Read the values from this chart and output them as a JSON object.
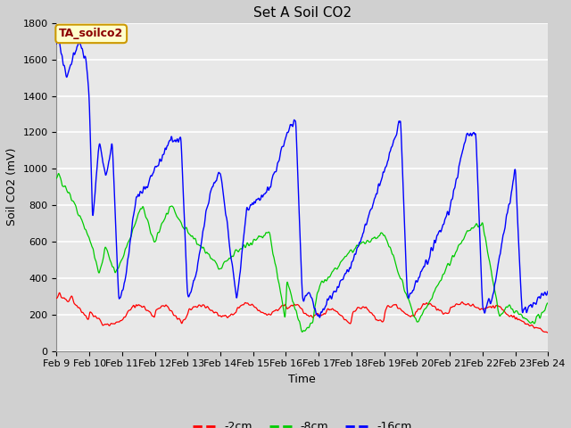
{
  "title": "Set A Soil CO2",
  "xlabel": "Time",
  "ylabel": "Soil CO2 (mV)",
  "ylim": [
    0,
    1800
  ],
  "yticks": [
    0,
    200,
    400,
    600,
    800,
    1000,
    1200,
    1400,
    1600,
    1800
  ],
  "date_labels": [
    "Feb 9",
    "Feb 10",
    "Feb 11",
    "Feb 12",
    "Feb 13",
    "Feb 14",
    "Feb 15",
    "Feb 16",
    "Feb 17",
    "Feb 18",
    "Feb 19",
    "Feb 20",
    "Feb 21",
    "Feb 22",
    "Feb 23",
    "Feb 24"
  ],
  "legend_label": "TA_soilco2",
  "series_labels": [
    "-2cm",
    "-8cm",
    "-16cm"
  ],
  "series_colors": [
    "#ff0000",
    "#00cc00",
    "#0000ff"
  ],
  "fig_bg_color": "#d0d0d0",
  "plot_bg_color": "#e8e8e8",
  "legend_box_facecolor": "#ffffcc",
  "legend_box_edgecolor": "#cc9900",
  "legend_text_color": "#8b0000",
  "grid_color": "#ffffff",
  "title_fontsize": 11,
  "axis_fontsize": 9,
  "tick_fontsize": 8,
  "annotation_fontsize": 9
}
